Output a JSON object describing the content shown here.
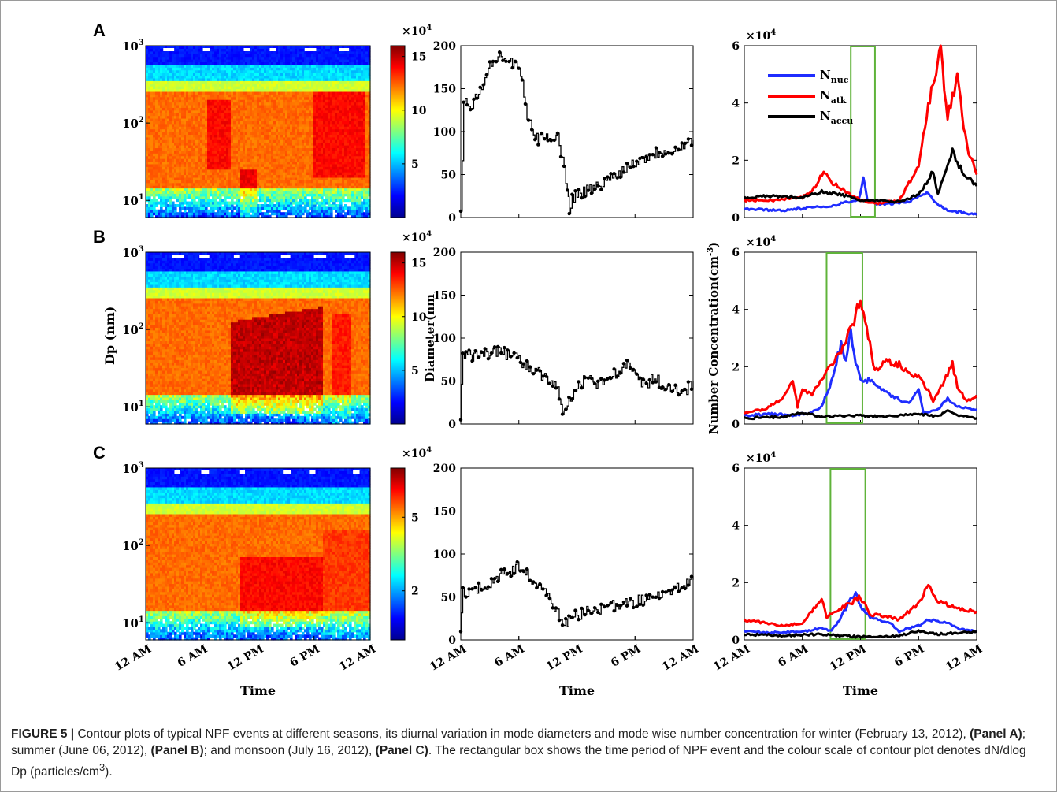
{
  "figure": {
    "panels": [
      "A",
      "B",
      "C"
    ],
    "caption": {
      "figure_label": "FIGURE 5 |",
      "segments": [
        {
          "text": " Contour plots of typical NPF events at different seasons, its diurnal variation in mode diameters and mode wise number concentration for winter (February 13, 2012), ",
          "bold": false
        },
        {
          "text": "(Panel A)",
          "bold": true
        },
        {
          "text": "; summer (June 06, 2012), ",
          "bold": false
        },
        {
          "text": "(Panel B)",
          "bold": true
        },
        {
          "text": "; and monsoon (July 16, 2012), ",
          "bold": false
        },
        {
          "text": "(Panel C)",
          "bold": true
        },
        {
          "text": ". The rectangular box shows the time period of NPF event and the colour scale of contour plot denotes dN/dlog Dp (particles/cm",
          "bold": false
        },
        {
          "text": "3",
          "bold": false,
          "sup": true
        },
        {
          "text": ").",
          "bold": false
        }
      ]
    }
  },
  "chart_data": [
    {
      "type": "heatmap",
      "panel": "A",
      "ylabel": "",
      "xlabel": "",
      "y_scale": "log",
      "ylim": [
        6,
        1000
      ],
      "yticks": [
        "10^1",
        "10^2",
        "10^3"
      ],
      "colorbar": {
        "multiplier": "×10^4",
        "ticks": [
          "5",
          "10",
          "15"
        ],
        "range": [
          0,
          16
        ]
      }
    },
    {
      "type": "line",
      "panel": "A",
      "ylabel": "",
      "xlabel": "",
      "ylim": [
        0,
        200
      ],
      "yticks": [
        "0",
        "50",
        "100",
        "150",
        "200"
      ],
      "series": [
        {
          "values": [
            [
              0,
              5
            ],
            [
              0.3,
              140
            ],
            [
              1,
              125
            ],
            [
              2,
              150
            ],
            [
              3,
              175
            ],
            [
              4,
              190
            ],
            [
              5,
              180
            ],
            [
              6,
              175
            ],
            [
              7,
              110
            ],
            [
              8,
              90
            ],
            [
              9,
              95
            ],
            [
              10,
              95
            ],
            [
              11,
              35
            ],
            [
              11.2,
              10
            ],
            [
              11.5,
              22
            ],
            [
              12,
              28
            ],
            [
              14,
              35
            ],
            [
              16,
              50
            ],
            [
              18,
              65
            ],
            [
              20,
              75
            ],
            [
              22,
              80
            ],
            [
              24,
              90
            ]
          ],
          "color": "#000000"
        }
      ]
    },
    {
      "type": "line",
      "panel": "A",
      "ylabel": "",
      "xlabel": "",
      "y_multiplier": "×10^4",
      "ylim": [
        0,
        6
      ],
      "yticks": [
        "0",
        "2",
        "4",
        "6"
      ],
      "legend": {
        "placement": "top-left",
        "entries": [
          {
            "base": "N",
            "sub": "nuc",
            "color": "#1f2dff"
          },
          {
            "base": "N",
            "sub": "atk",
            "color": "#ff0000"
          },
          {
            "base": "N",
            "sub": "accu",
            "color": "#000000"
          }
        ]
      },
      "npf_box": [
        11,
        13.5
      ],
      "series": [
        {
          "values": [
            [
              0,
              0.3
            ],
            [
              4,
              0.25
            ],
            [
              7,
              0.35
            ],
            [
              9,
              0.4
            ],
            [
              10,
              0.5
            ],
            [
              11.8,
              0.6
            ],
            [
              12.3,
              1.4
            ],
            [
              12.7,
              0.6
            ],
            [
              14,
              0.45
            ],
            [
              17,
              0.55
            ],
            [
              19,
              0.9
            ],
            [
              19.8,
              0.5
            ],
            [
              21,
              0.25
            ],
            [
              24,
              0.1
            ]
          ],
          "color": "#1f2dff"
        },
        {
          "values": [
            [
              0,
              0.6
            ],
            [
              3,
              0.6
            ],
            [
              6,
              0.7
            ],
            [
              7.5,
              1.1
            ],
            [
              8.2,
              1.7
            ],
            [
              8.8,
              1.3
            ],
            [
              10,
              1.0
            ],
            [
              12,
              0.6
            ],
            [
              14,
              0.5
            ],
            [
              16,
              0.6
            ],
            [
              18,
              1.8
            ],
            [
              19,
              4.0
            ],
            [
              20.3,
              5.9
            ],
            [
              21,
              3.5
            ],
            [
              22,
              4.8
            ],
            [
              23,
              2.5
            ],
            [
              24,
              1.5
            ]
          ],
          "color": "#ff0000"
        },
        {
          "values": [
            [
              0,
              0.7
            ],
            [
              3,
              0.75
            ],
            [
              6,
              0.7
            ],
            [
              8,
              0.9
            ],
            [
              10,
              0.8
            ],
            [
              12,
              0.6
            ],
            [
              16,
              0.55
            ],
            [
              18,
              0.8
            ],
            [
              19.5,
              1.6
            ],
            [
              20,
              0.8
            ],
            [
              21.5,
              2.3
            ],
            [
              22.5,
              1.6
            ],
            [
              24,
              1.1
            ]
          ],
          "color": "#000000"
        }
      ]
    },
    {
      "type": "heatmap",
      "panel": "B",
      "ylabel": "Dp (nm)",
      "xlabel": "",
      "y_scale": "log",
      "ylim": [
        6,
        1000
      ],
      "yticks": [
        "10^1",
        "10^2",
        "10^3"
      ],
      "colorbar": {
        "multiplier": "×10^4",
        "ticks": [
          "5",
          "10",
          "15"
        ],
        "range": [
          0,
          16
        ]
      }
    },
    {
      "type": "line",
      "panel": "B",
      "ylabel": "Diameter(nm)",
      "xlabel": "",
      "ylim": [
        0,
        200
      ],
      "yticks": [
        "0",
        "50",
        "100",
        "150",
        "200"
      ],
      "series": [
        {
          "values": [
            [
              0,
              5
            ],
            [
              0.2,
              80
            ],
            [
              2,
              80
            ],
            [
              4,
              85
            ],
            [
              6,
              75
            ],
            [
              8,
              60
            ],
            [
              10,
              40
            ],
            [
              10.5,
              18
            ],
            [
              11,
              22
            ],
            [
              12,
              40
            ],
            [
              13,
              55
            ],
            [
              14,
              45
            ],
            [
              15,
              55
            ],
            [
              16,
              60
            ],
            [
              17,
              70
            ],
            [
              18,
              55
            ],
            [
              19,
              45
            ],
            [
              20,
              55
            ],
            [
              21,
              40
            ],
            [
              22,
              45
            ],
            [
              23,
              35
            ],
            [
              24,
              50
            ]
          ],
          "color": "#000000"
        }
      ]
    },
    {
      "type": "line",
      "panel": "B",
      "ylabel": "Number Concentration(cm^-3)",
      "xlabel": "",
      "y_multiplier": "×10^4",
      "ylim": [
        0,
        6
      ],
      "yticks": [
        "0",
        "2",
        "4",
        "6"
      ],
      "npf_box": [
        8.5,
        12.2
      ],
      "series": [
        {
          "values": [
            [
              0,
              0.3
            ],
            [
              3,
              0.35
            ],
            [
              5,
              0.3
            ],
            [
              7,
              0.4
            ],
            [
              8,
              0.6
            ],
            [
              9,
              1.5
            ],
            [
              10,
              2.8
            ],
            [
              10.5,
              2.2
            ],
            [
              11,
              3.2
            ],
            [
              11.5,
              2.2
            ],
            [
              12,
              1.6
            ],
            [
              13,
              1.5
            ],
            [
              15,
              1.0
            ],
            [
              17,
              0.7
            ],
            [
              18,
              1.2
            ],
            [
              18.5,
              0.4
            ],
            [
              20,
              0.5
            ],
            [
              21,
              0.9
            ],
            [
              22,
              0.6
            ],
            [
              24,
              0.5
            ]
          ],
          "color": "#1f2dff"
        },
        {
          "values": [
            [
              0,
              0.4
            ],
            [
              2,
              0.5
            ],
            [
              3,
              0.7
            ],
            [
              4,
              0.9
            ],
            [
              5,
              1.5
            ],
            [
              5.5,
              0.6
            ],
            [
              6,
              1.2
            ],
            [
              7,
              1.0
            ],
            [
              8,
              1.6
            ],
            [
              9,
              2.0
            ],
            [
              10,
              2.6
            ],
            [
              11,
              3.3
            ],
            [
              12,
              4.4
            ],
            [
              12.8,
              3.0
            ],
            [
              13.5,
              1.9
            ],
            [
              14.5,
              2.2
            ],
            [
              16,
              2.1
            ],
            [
              17,
              1.8
            ],
            [
              18,
              1.6
            ],
            [
              19,
              1.2
            ],
            [
              19.5,
              0.8
            ],
            [
              20.5,
              1.4
            ],
            [
              21.5,
              2.1
            ],
            [
              22,
              1.3
            ],
            [
              23,
              0.8
            ],
            [
              24,
              1.0
            ]
          ],
          "color": "#ff0000"
        },
        {
          "values": [
            [
              0,
              0.2
            ],
            [
              4,
              0.25
            ],
            [
              6,
              0.4
            ],
            [
              8,
              0.25
            ],
            [
              12,
              0.3
            ],
            [
              14,
              0.25
            ],
            [
              18,
              0.35
            ],
            [
              20,
              0.25
            ],
            [
              21,
              0.5
            ],
            [
              22,
              0.3
            ],
            [
              24,
              0.2
            ]
          ],
          "color": "#000000"
        }
      ]
    },
    {
      "type": "heatmap",
      "panel": "C",
      "ylabel": "",
      "xlabel": "Time",
      "y_scale": "log",
      "ylim": [
        6,
        1000
      ],
      "yticks": [
        "10^1",
        "10^2",
        "10^3"
      ],
      "xticks": [
        "12 AM",
        "6 AM",
        "12 PM",
        "6 PM",
        "12 AM"
      ],
      "colorbar": {
        "multiplier": "×10^4",
        "ticks": [
          "2",
          "5"
        ],
        "range": [
          0,
          7
        ]
      }
    },
    {
      "type": "line",
      "panel": "C",
      "ylabel": "",
      "xlabel": "Time",
      "ylim": [
        0,
        200
      ],
      "yticks": [
        "0",
        "50",
        "100",
        "150",
        "200"
      ],
      "xticks": [
        "12 AM",
        "6 AM",
        "12 PM",
        "6 PM",
        "12 AM"
      ],
      "series": [
        {
          "values": [
            [
              0,
              5
            ],
            [
              0.2,
              55
            ],
            [
              2,
              60
            ],
            [
              3,
              65
            ],
            [
              4,
              75
            ],
            [
              5,
              80
            ],
            [
              6,
              85
            ],
            [
              7,
              75
            ],
            [
              8,
              60
            ],
            [
              9,
              50
            ],
            [
              10,
              35
            ],
            [
              10.5,
              15
            ],
            [
              11,
              20
            ],
            [
              12,
              30
            ],
            [
              14,
              35
            ],
            [
              16,
              40
            ],
            [
              18,
              45
            ],
            [
              20,
              50
            ],
            [
              22,
              60
            ],
            [
              24,
              70
            ]
          ],
          "color": "#000000"
        }
      ]
    },
    {
      "type": "line",
      "panel": "C",
      "ylabel": "",
      "xlabel": "Time",
      "y_multiplier": "×10^4",
      "ylim": [
        0,
        6
      ],
      "yticks": [
        "0",
        "2",
        "4",
        "6"
      ],
      "xticks": [
        "12 AM",
        "6 AM",
        "12 PM",
        "6 PM",
        "12 AM"
      ],
      "npf_box": [
        8.9,
        12.5
      ],
      "series": [
        {
          "values": [
            [
              0,
              0.3
            ],
            [
              3,
              0.25
            ],
            [
              6,
              0.3
            ],
            [
              8,
              0.4
            ],
            [
              9,
              0.3
            ],
            [
              10,
              0.8
            ],
            [
              11,
              1.4
            ],
            [
              11.5,
              1.6
            ],
            [
              12,
              1.2
            ],
            [
              13,
              0.8
            ],
            [
              15,
              0.6
            ],
            [
              16,
              0.3
            ],
            [
              18,
              0.5
            ],
            [
              19,
              0.7
            ],
            [
              21,
              0.6
            ],
            [
              22,
              0.4
            ],
            [
              24,
              0.3
            ]
          ],
          "color": "#1f2dff"
        },
        {
          "values": [
            [
              0,
              0.7
            ],
            [
              2,
              0.6
            ],
            [
              4,
              0.5
            ],
            [
              6,
              0.6
            ],
            [
              7,
              1.0
            ],
            [
              8,
              1.4
            ],
            [
              8.5,
              0.8
            ],
            [
              9.5,
              1.0
            ],
            [
              11,
              1.3
            ],
            [
              12,
              1.5
            ],
            [
              13,
              0.9
            ],
            [
              15,
              0.8
            ],
            [
              16,
              0.7
            ],
            [
              17,
              1.0
            ],
            [
              18,
              1.3
            ],
            [
              19,
              1.9
            ],
            [
              20,
              1.4
            ],
            [
              22,
              1.1
            ],
            [
              24,
              1.0
            ]
          ],
          "color": "#ff0000"
        },
        {
          "values": [
            [
              0,
              0.2
            ],
            [
              4,
              0.15
            ],
            [
              8,
              0.2
            ],
            [
              12,
              0.1
            ],
            [
              16,
              0.15
            ],
            [
              18,
              0.3
            ],
            [
              20,
              0.2
            ],
            [
              22,
              0.25
            ],
            [
              24,
              0.3
            ]
          ],
          "color": "#000000"
        }
      ]
    }
  ]
}
